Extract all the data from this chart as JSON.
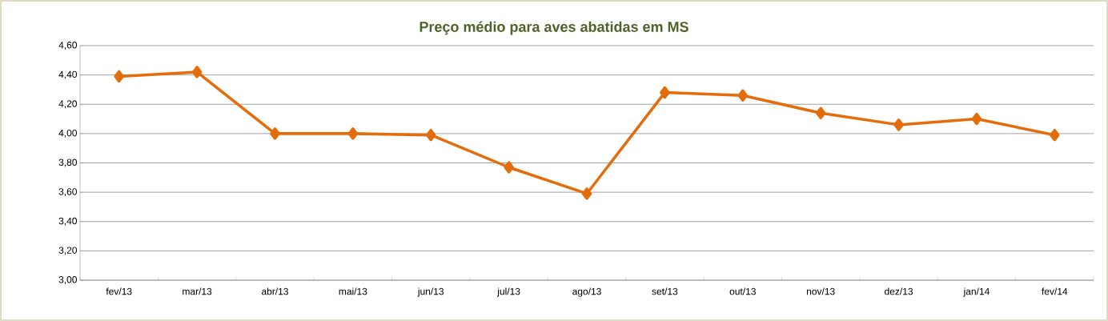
{
  "chart_data": {
    "type": "line",
    "title": "Preço médio para aves abatidas em MS",
    "categories": [
      "fev/13",
      "mar/13",
      "abr/13",
      "mai/13",
      "jun/13",
      "jul/13",
      "ago/13",
      "set/13",
      "out/13",
      "nov/13",
      "dez/13",
      "jan/14",
      "fev/14"
    ],
    "series": [
      {
        "color": "#e46c0a",
        "values": [
          4.39,
          4.42,
          4.0,
          4.0,
          3.99,
          3.77,
          3.59,
          4.28,
          4.26,
          4.14,
          4.06,
          4.1,
          3.99
        ]
      }
    ],
    "ylim": [
      3.0,
      4.6
    ],
    "yticks": [
      {
        "value": 3.0,
        "label": "3,00"
      },
      {
        "value": 3.2,
        "label": "3,20"
      },
      {
        "value": 3.4,
        "label": "3,40"
      },
      {
        "value": 3.6,
        "label": "3,60"
      },
      {
        "value": 3.8,
        "label": "3,80"
      },
      {
        "value": 4.0,
        "label": "4,00"
      },
      {
        "value": 4.2,
        "label": "4,20"
      },
      {
        "value": 4.4,
        "label": "4,40"
      },
      {
        "value": 4.6,
        "label": "4,60"
      }
    ],
    "grid": "y",
    "marker": "diamond"
  }
}
